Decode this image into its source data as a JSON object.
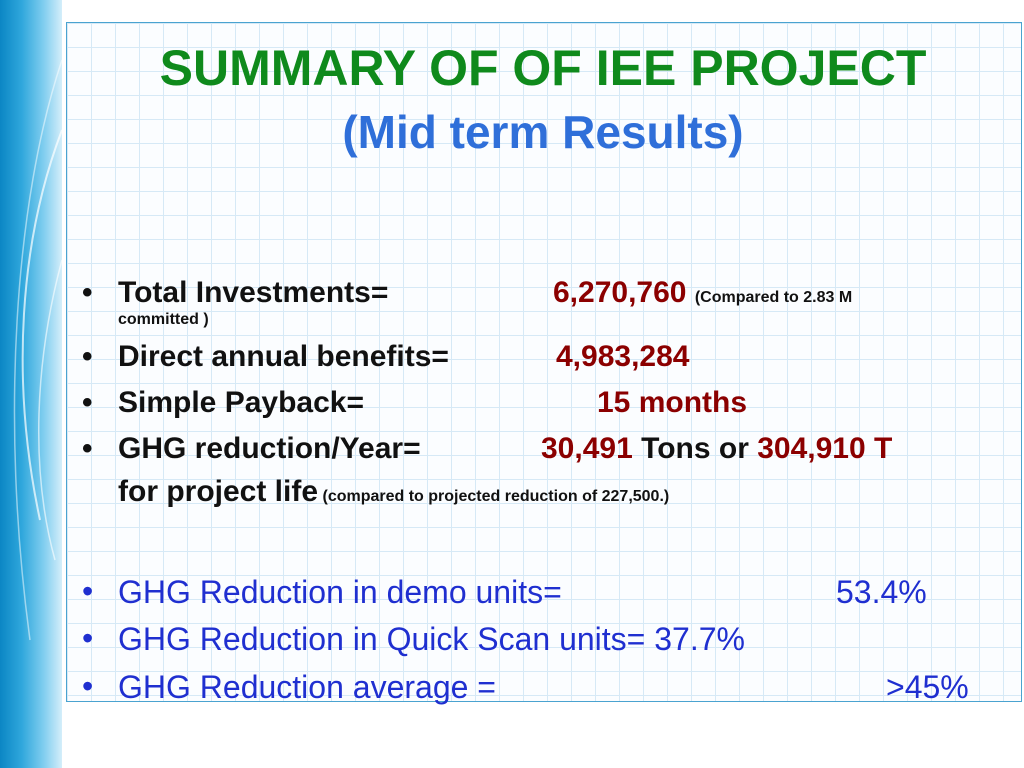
{
  "title": "SUMMARY OF OF IEE PROJECT",
  "subtitle": "(Mid term Results)",
  "bullet_symbol": "•",
  "items": [
    {
      "label": "Total Investments=",
      "value": "6,270,760",
      "note_1": "(Compared to 2.83 M",
      "note_2": "committed )"
    },
    {
      "label": "Direct annual benefits=",
      "value": "4,983,284"
    },
    {
      "label": "Simple Payback=",
      "value": "15 months"
    },
    {
      "label": "GHG reduction/Year=",
      "value": "30,491",
      "mid": " Tons or ",
      "value_2": "304,910 T",
      "line2": "for project life",
      "note": "(compared to projected reduction of 227,500.)"
    }
  ],
  "reductions": [
    {
      "label": "GHG Reduction in demo units=",
      "value": "53.4%"
    },
    {
      "label": "GHG Reduction in Quick Scan units=",
      "value": "37.7%"
    },
    {
      "label": "GHG Reduction average =",
      "value": ">45%"
    }
  ],
  "colors": {
    "title": "#0f8a1c",
    "subtitle": "#2f6fd9",
    "value": "#8b0000",
    "blue_text": "#1f2fd0",
    "band": "#0b86c4"
  }
}
